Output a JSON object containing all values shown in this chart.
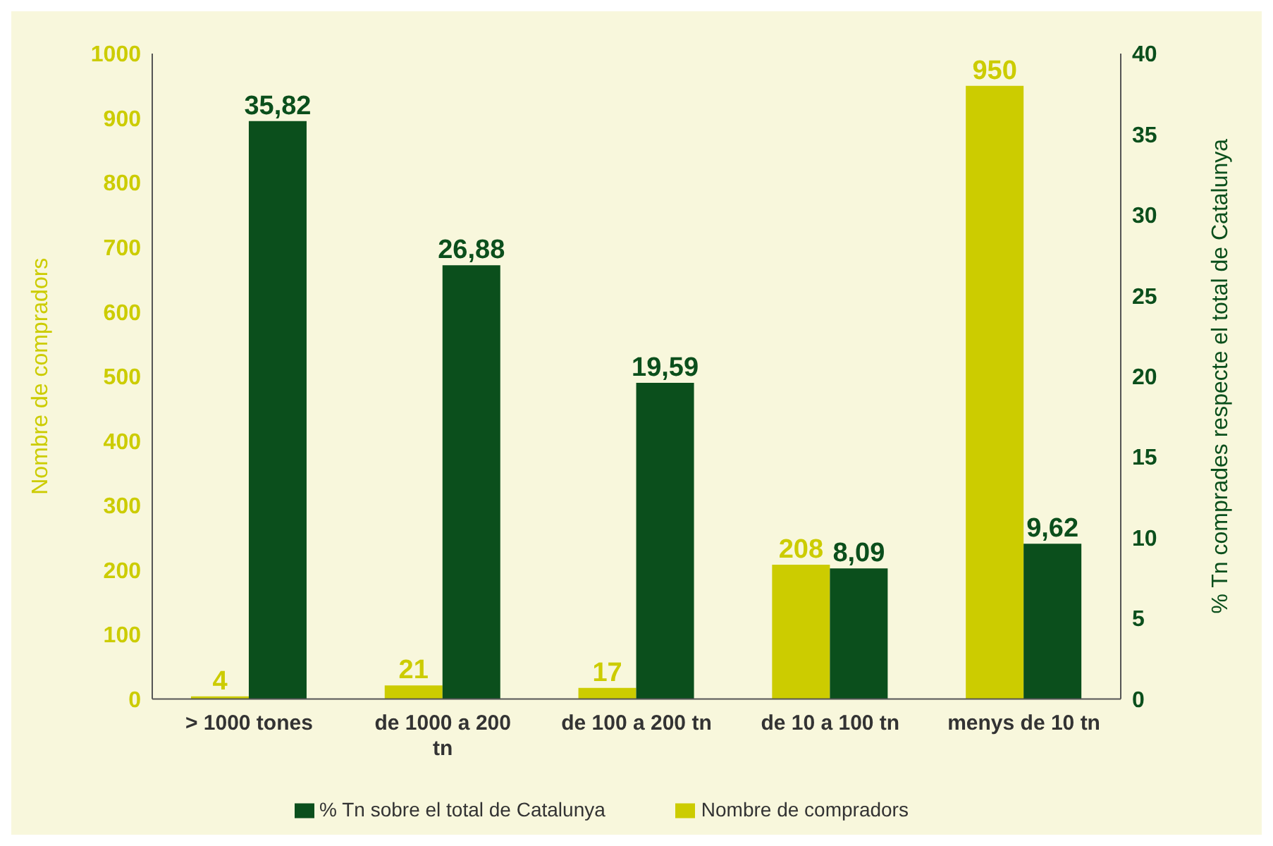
{
  "chart_data": {
    "type": "bar",
    "categories": [
      "> 1000 tones",
      "de 1000 a 200 tn",
      "de 100 a 200 tn",
      "de 10 a 100 tn",
      "menys de 10 tn"
    ],
    "ylabel": "Nombre de compradors",
    "y2label": "% Tn comprades respecte el total de Catalunya",
    "ylim": [
      0,
      1000
    ],
    "yticks": [
      0,
      100,
      200,
      300,
      400,
      500,
      600,
      700,
      800,
      900,
      1000
    ],
    "y2lim": [
      0,
      40
    ],
    "y2ticks": [
      0,
      5,
      10,
      15,
      20,
      25,
      30,
      35,
      40
    ],
    "series": [
      {
        "name": "Nombre de compradors",
        "color": "#cccc00",
        "values": [
          4,
          21,
          17,
          208,
          950
        ],
        "value_labels": [
          "4",
          "21",
          "17",
          "208",
          "950"
        ]
      },
      {
        "name": "% Tn sobre el total de Catalunya",
        "color": "#0b4f1c",
        "axis": "y2",
        "values": [
          35.82,
          26.88,
          19.59,
          8.09,
          9.62
        ],
        "value_labels": [
          "35,82",
          "26,88",
          "19,59",
          "8,09",
          "9,62"
        ]
      }
    ],
    "legend": "bottom",
    "grid": false
  }
}
